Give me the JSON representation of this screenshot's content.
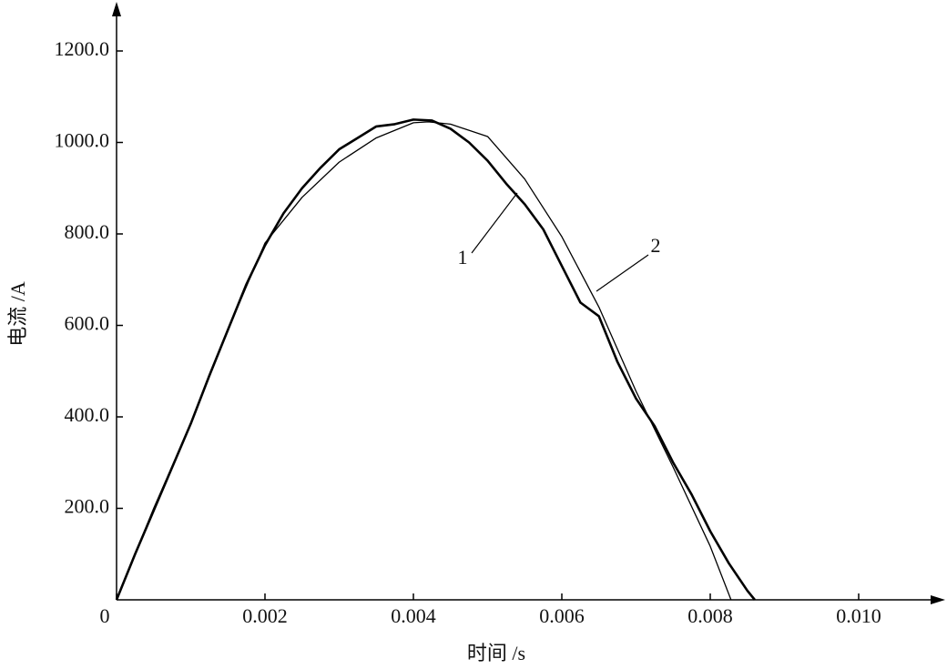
{
  "chart_data": {
    "type": "line",
    "xlabel": "时间 /s",
    "ylabel": "电流 /A",
    "xlim": [
      0,
      0.011
    ],
    "ylim": [
      0,
      1300
    ],
    "xticks": [
      0,
      0.002,
      0.004,
      0.006,
      0.008,
      {
        "value": 0.01,
        "label": "0.010"
      }
    ],
    "yticks": [
      {
        "value": 200,
        "label": "200.0"
      },
      {
        "value": 400,
        "label": "400.0"
      },
      {
        "value": 600,
        "label": "600.0"
      },
      {
        "value": 800,
        "label": "800.0"
      },
      {
        "value": 1000,
        "label": "1000.0"
      },
      {
        "value": 1200,
        "label": "1200.0"
      }
    ],
    "series": [
      {
        "name": "1",
        "color": "#000000",
        "x": [
          0,
          0.00025,
          0.0005,
          0.00075,
          0.001,
          0.00125,
          0.0015,
          0.00175,
          0.002,
          0.00225,
          0.0025,
          0.00275,
          0.003,
          0.00325,
          0.0035,
          0.00375,
          0.004,
          0.00425,
          0.0045,
          0.00475,
          0.005,
          0.00525,
          0.0055,
          0.00575,
          0.006,
          0.00625,
          0.0065,
          0.00675,
          0.007,
          0.00725,
          0.0075,
          0.00775,
          0.008,
          0.00825,
          0.0085,
          0.0086
        ],
        "values": [
          0,
          100,
          195,
          290,
          385,
          490,
          590,
          690,
          775,
          845,
          900,
          945,
          985,
          1010,
          1035,
          1040,
          1050,
          1048,
          1030,
          1000,
          960,
          910,
          865,
          810,
          730,
          650,
          620,
          520,
          440,
          380,
          300,
          230,
          150,
          80,
          20,
          0
        ]
      },
      {
        "name": "2",
        "color": "#000000",
        "x": [
          0,
          0.0005,
          0.001,
          0.0015,
          0.002,
          0.0025,
          0.003,
          0.0035,
          0.004,
          0.0042,
          0.0045,
          0.005,
          0.0055,
          0.006,
          0.0065,
          0.007,
          0.0075,
          0.008,
          0.00828
        ],
        "values": [
          0,
          200,
          385,
          590,
          780,
          880,
          957,
          1010,
          1043,
          1045,
          1040,
          1013,
          920,
          794,
          640,
          456,
          290,
          117,
          0
        ]
      }
    ]
  }
}
